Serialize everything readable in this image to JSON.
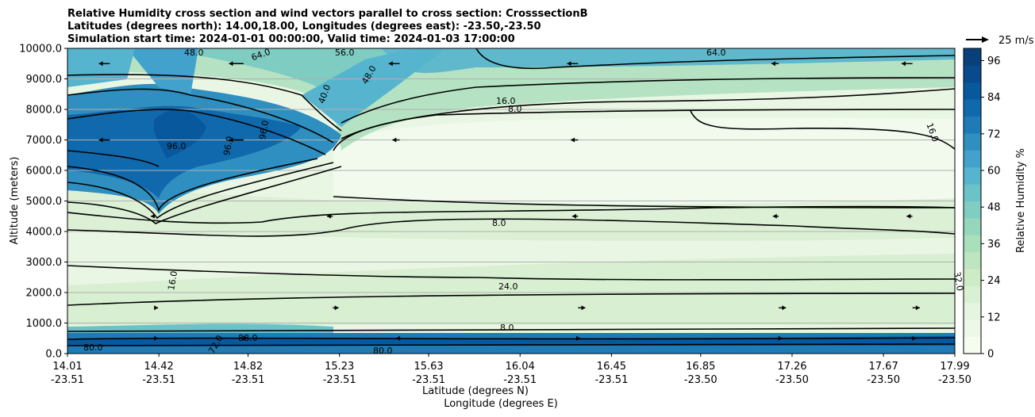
{
  "chart_data": {
    "type": "heatmap",
    "title_lines": [
      "Relative Humidity cross section and wind vectors parallel to cross section: CrosssectionB",
      "Latitudes (degrees north): 14.00,18.00, Longitudes (degrees east): -23.50,-23.50",
      "Simulation start time: 2024-01-01 00:00:00, Valid time: 2024-01-03 17:00:00"
    ],
    "ylabel": "Altitude (meters)",
    "xlabel_lines": [
      "Latitude (degrees N)",
      "Longitude (degrees E)"
    ],
    "ylim": [
      0,
      10000
    ],
    "y_ticks": [
      {
        "value": 0,
        "label": "0.0"
      },
      {
        "value": 1000,
        "label": "1000.0"
      },
      {
        "value": 2000,
        "label": "2000.0"
      },
      {
        "value": 3000,
        "label": "3000.0"
      },
      {
        "value": 4000,
        "label": "4000.0"
      },
      {
        "value": 5000,
        "label": "5000.0"
      },
      {
        "value": 6000,
        "label": "6000.0"
      },
      {
        "value": 7000,
        "label": "7000.0"
      },
      {
        "value": 8000,
        "label": "8000.0"
      },
      {
        "value": 9000,
        "label": "9000.0"
      },
      {
        "value": 10000,
        "label": "10000.0"
      }
    ],
    "x_ticks": [
      {
        "lat": "14.01",
        "lon": "-23.51"
      },
      {
        "lat": "14.42",
        "lon": "-23.51"
      },
      {
        "lat": "14.82",
        "lon": "-23.51"
      },
      {
        "lat": "15.23",
        "lon": "-23.51"
      },
      {
        "lat": "15.63",
        "lon": "-23.51"
      },
      {
        "lat": "16.04",
        "lon": "-23.51"
      },
      {
        "lat": "16.45",
        "lon": "-23.51"
      },
      {
        "lat": "16.85",
        "lon": "-23.50"
      },
      {
        "lat": "17.26",
        "lon": "-23.50"
      },
      {
        "lat": "17.67",
        "lon": "-23.50"
      },
      {
        "lat": "17.99",
        "lon": "-23.50"
      }
    ],
    "x_range_lat": [
      14.01,
      17.99
    ],
    "colorbar": {
      "label": "Relative Humidity %",
      "range": [
        0,
        100
      ],
      "tick_values": [
        0,
        12,
        24,
        36,
        48,
        60,
        72,
        84,
        96
      ],
      "colors": [
        "#f7fcf0",
        "#eef8e9",
        "#e5f5e0",
        "#daf0d4",
        "#cdebc5",
        "#bde5bf",
        "#aadfbc",
        "#96d6bc",
        "#80cdc1",
        "#6bc3c8",
        "#56b4cf",
        "#42a2cb",
        "#2f8fc0",
        "#1f7bb6",
        "#1069ac",
        "#08589e",
        "#084a8c",
        "#08407c"
      ]
    },
    "contour_labels": [
      "8.0",
      "16.0",
      "24.0",
      "32.0",
      "40.0",
      "48.0",
      "56.0",
      "64.0",
      "72.0",
      "80.0",
      "88.0",
      "96.0"
    ],
    "quiver_key": {
      "label": "25 m/s",
      "speed": 25
    },
    "wind_barbs": [
      {
        "lat": 14.4,
        "z": 500,
        "u": 5
      },
      {
        "lat": 14.8,
        "z": 500,
        "u": 5
      },
      {
        "lat": 15.5,
        "z": 500,
        "u": -5
      },
      {
        "lat": 16.3,
        "z": 500,
        "u": 3
      },
      {
        "lat": 17.2,
        "z": 500,
        "u": 5
      },
      {
        "lat": 17.8,
        "z": 500,
        "u": 5
      },
      {
        "lat": 14.4,
        "z": 1500,
        "u": 5
      },
      {
        "lat": 15.2,
        "z": 1500,
        "u": 8
      },
      {
        "lat": 16.3,
        "z": 1500,
        "u": 10
      },
      {
        "lat": 17.2,
        "z": 1500,
        "u": 10
      },
      {
        "lat": 17.8,
        "z": 1500,
        "u": 10
      },
      {
        "lat": 14.4,
        "z": 4500,
        "u": -5
      },
      {
        "lat": 15.2,
        "z": 4500,
        "u": -8
      },
      {
        "lat": 16.3,
        "z": 4500,
        "u": -8
      },
      {
        "lat": 17.2,
        "z": 4500,
        "u": -8
      },
      {
        "lat": 17.8,
        "z": 4500,
        "u": -8
      },
      {
        "lat": 14.2,
        "z": 7000,
        "u": -15
      },
      {
        "lat": 14.8,
        "z": 7000,
        "u": -20
      },
      {
        "lat": 15.5,
        "z": 7000,
        "u": -10
      },
      {
        "lat": 16.3,
        "z": 7000,
        "u": -10
      },
      {
        "lat": 14.2,
        "z": 9500,
        "u": -15
      },
      {
        "lat": 14.8,
        "z": 9500,
        "u": -20
      },
      {
        "lat": 15.5,
        "z": 9500,
        "u": -15
      },
      {
        "lat": 16.3,
        "z": 9500,
        "u": -15
      },
      {
        "lat": 17.2,
        "z": 9500,
        "u": -10
      },
      {
        "lat": 17.8,
        "z": 9500,
        "u": -15
      }
    ]
  }
}
